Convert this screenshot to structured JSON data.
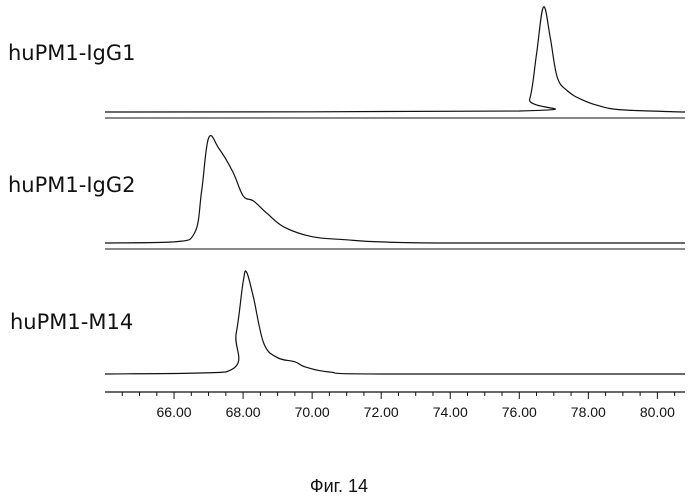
{
  "chart_data": {
    "type": "line",
    "title": "",
    "xlabel": "",
    "ylabel": "",
    "xlim": [
      64.0,
      80.8
    ],
    "grid": false,
    "legend": "none",
    "x_ticks": [
      "66.00",
      "68.00",
      "70.00",
      "72.00",
      "74.00",
      "76.00",
      "78.00",
      "80.00"
    ],
    "x_tick_values": [
      66,
      68,
      70,
      72,
      74,
      76,
      78,
      80
    ],
    "series": [
      {
        "name": "huPM1-IgG1",
        "x": [
          64.0,
          76.0,
          76.3,
          76.5,
          76.7,
          76.9,
          77.1,
          77.4,
          77.8,
          78.3,
          79.0,
          80.8
        ],
        "y": [
          0.0,
          0.01,
          0.12,
          0.55,
          1.0,
          0.7,
          0.33,
          0.2,
          0.12,
          0.06,
          0.02,
          0.0
        ]
      },
      {
        "name": "huPM1-IgG2",
        "x": [
          64.0,
          66.0,
          66.6,
          66.8,
          67.0,
          67.3,
          67.7,
          68.0,
          68.3,
          68.7,
          69.2,
          70.0,
          71.0,
          72.0,
          74.0,
          80.8
        ],
        "y": [
          0.0,
          0.01,
          0.1,
          0.5,
          1.0,
          0.9,
          0.68,
          0.45,
          0.4,
          0.28,
          0.15,
          0.06,
          0.03,
          0.01,
          0.0,
          0.0
        ]
      },
      {
        "name": "huPM1-M14",
        "x": [
          64.0,
          67.5,
          67.8,
          68.0,
          68.1,
          68.3,
          68.6,
          69.0,
          69.5,
          69.8,
          70.5,
          72.0,
          80.8
        ],
        "y": [
          0.0,
          0.02,
          0.4,
          0.9,
          1.0,
          0.75,
          0.3,
          0.16,
          0.12,
          0.07,
          0.02,
          0.0,
          0.0
        ]
      }
    ]
  },
  "caption": "Фиг. 14"
}
